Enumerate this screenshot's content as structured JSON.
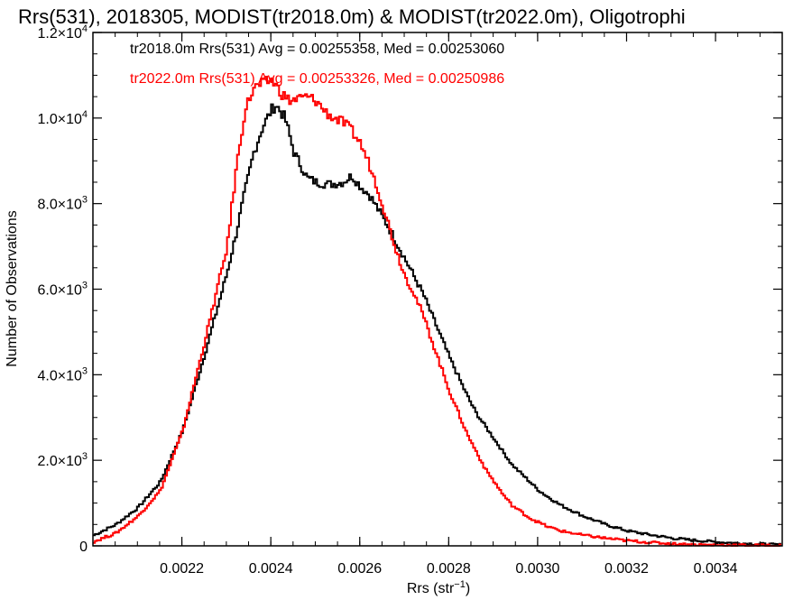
{
  "chart_data": {
    "type": "line",
    "title": "Rrs(531), 2018305, MODIST(tr2018.0m) & MODIST(tr2022.0m), Oligotrophi",
    "xlabel": "Rrs (str⁻¹)",
    "xlabel_main": "Rrs (str",
    "xlabel_sup": "−1",
    "xlabel_close": ")",
    "ylabel": "Number of Observations",
    "xlim": [
      0.002,
      0.00355
    ],
    "ylim": [
      0,
      12000
    ],
    "x_ticks": [
      {
        "value": 0.0022,
        "label": "0.0022"
      },
      {
        "value": 0.0024,
        "label": "0.0024"
      },
      {
        "value": 0.0026,
        "label": "0.0026"
      },
      {
        "value": 0.0028,
        "label": "0.0028"
      },
      {
        "value": 0.003,
        "label": "0.0030"
      },
      {
        "value": 0.0032,
        "label": "0.0032"
      },
      {
        "value": 0.0034,
        "label": "0.0034"
      }
    ],
    "y_ticks": [
      {
        "value": 0,
        "label": "0",
        "sup": ""
      },
      {
        "value": 2000,
        "label": "2.0×10",
        "sup": "3"
      },
      {
        "value": 4000,
        "label": "4.0×10",
        "sup": "3"
      },
      {
        "value": 6000,
        "label": "6.0×10",
        "sup": "3"
      },
      {
        "value": 8000,
        "label": "8.0×10",
        "sup": "3"
      },
      {
        "value": 10000,
        "label": "1.0×10",
        "sup": "4"
      },
      {
        "value": 12000,
        "label": "1.2×10",
        "sup": "4"
      }
    ],
    "grid": false,
    "legend_position": "top-left",
    "series": [
      {
        "name": "tr2018.0m",
        "legend_text": "tr2018.0m Rrs(531) Avg = 0.00255358, Med = 0.00253060",
        "color": "#000000",
        "step": true,
        "x": [
          0.002,
          0.00205,
          0.0021,
          0.00215,
          0.0022,
          0.00225,
          0.0023,
          0.00232,
          0.00234,
          0.00236,
          0.00238,
          0.0024,
          0.00241,
          0.00243,
          0.00245,
          0.00248,
          0.0025,
          0.00253,
          0.00256,
          0.00258,
          0.0026,
          0.00262,
          0.00264,
          0.00266,
          0.00268,
          0.0027,
          0.00272,
          0.00274,
          0.00276,
          0.00278,
          0.0028,
          0.00282,
          0.00284,
          0.00286,
          0.00288,
          0.0029,
          0.00292,
          0.00294,
          0.00296,
          0.00298,
          0.003,
          0.00302,
          0.00305,
          0.0031,
          0.00315,
          0.0032,
          0.00325,
          0.0033,
          0.00335,
          0.0034,
          0.00345,
          0.0035,
          0.00355
        ],
        "y": [
          250,
          500,
          900,
          1500,
          2700,
          4500,
          6400,
          7300,
          8300,
          9200,
          9800,
          10200,
          10300,
          10000,
          9200,
          8600,
          8500,
          8450,
          8500,
          8650,
          8400,
          8200,
          7850,
          7500,
          7100,
          6700,
          6300,
          5900,
          5400,
          4900,
          4400,
          3950,
          3500,
          3100,
          2800,
          2500,
          2200,
          1900,
          1700,
          1500,
          1300,
          1150,
          950,
          700,
          500,
          350,
          260,
          180,
          130,
          90,
          60,
          40,
          20
        ]
      },
      {
        "name": "tr2022.0m",
        "legend_text": "tr2022.0m Rrs(531) Avg = 0.00253326, Med = 0.00250986",
        "color": "#ff0000",
        "step": true,
        "x": [
          0.002,
          0.00205,
          0.0021,
          0.00215,
          0.0022,
          0.00225,
          0.0023,
          0.00232,
          0.00234,
          0.00236,
          0.00238,
          0.0024,
          0.00242,
          0.00244,
          0.00246,
          0.00248,
          0.0025,
          0.00252,
          0.00254,
          0.00256,
          0.00258,
          0.0026,
          0.00262,
          0.00264,
          0.00266,
          0.00268,
          0.0027,
          0.00272,
          0.00274,
          0.00276,
          0.00278,
          0.0028,
          0.00282,
          0.00284,
          0.00286,
          0.00288,
          0.0029,
          0.00292,
          0.00294,
          0.00296,
          0.00298,
          0.003,
          0.00302,
          0.00305,
          0.0031,
          0.00315,
          0.0032,
          0.00325,
          0.0033,
          0.00335,
          0.0034,
          0.00345,
          0.0035,
          0.00355
        ],
        "y": [
          100,
          300,
          700,
          1300,
          2700,
          4800,
          7000,
          8800,
          10200,
          10700,
          10800,
          10900,
          10600,
          10400,
          10450,
          10500,
          10400,
          10150,
          10000,
          9900,
          9700,
          9400,
          8900,
          8300,
          7600,
          6900,
          6300,
          5900,
          5400,
          4800,
          4200,
          3600,
          3100,
          2600,
          2200,
          1800,
          1500,
          1200,
          950,
          800,
          650,
          550,
          450,
          350,
          250,
          180,
          120,
          80,
          50,
          30,
          20,
          15,
          10,
          5
        ]
      }
    ]
  }
}
